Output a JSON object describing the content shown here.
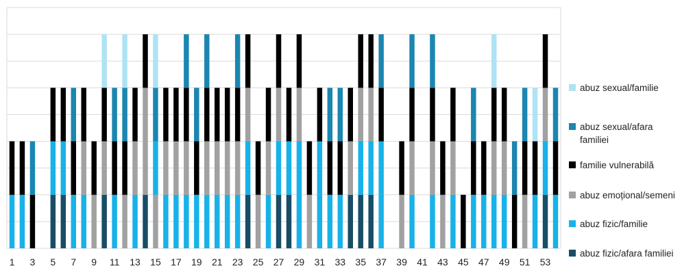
{
  "chart_data": {
    "type": "bar",
    "stacked": true,
    "title": "",
    "xlabel": "",
    "ylabel": "",
    "ylim": [
      0,
      4.5
    ],
    "grid": true,
    "legend_position": "right",
    "colors": {
      "abuz_sexual_familie": "#aee3f5",
      "abuz_sexual_afara": "#1b86b0",
      "familie_vulnerabila": "#000000",
      "abuz_emotional": "#a1a1a1",
      "abuz_fizic_familie": "#18b2e8",
      "abuz_fizic_afara": "#184d66"
    },
    "legend": [
      {
        "key": "abuz_sexual_familie",
        "label": "abuz sexual/familie"
      },
      {
        "key": "abuz_sexual_afara",
        "label": "abuz sexual/afara familiei"
      },
      {
        "key": "familie_vulnerabila",
        "label": "familie vulnerabilă"
      },
      {
        "key": "abuz_emotional",
        "label": "abuz emoțional/semeni"
      },
      {
        "key": "abuz_fizic_familie",
        "label": "abuz fizic/familie"
      },
      {
        "key": "abuz_fizic_afara",
        "label": "abuz fizic/afara familiei"
      }
    ],
    "x_tick_labels": [
      "1",
      "3",
      "5",
      "7",
      "9",
      "11",
      "13",
      "15",
      "17",
      "19",
      "21",
      "23",
      "25",
      "27",
      "29",
      "31",
      "33",
      "35",
      "37",
      "39",
      "41",
      "43",
      "45",
      "47",
      "49",
      "51",
      "53"
    ],
    "cases": [
      {
        "case": 1,
        "stack": [
          "abuz_fizic_familie",
          "familie_vulnerabila"
        ]
      },
      {
        "case": 2,
        "stack": [
          "abuz_fizic_familie",
          "familie_vulnerabila"
        ]
      },
      {
        "case": 3,
        "stack": [
          "familie_vulnerabila",
          "abuz_sexual_afara"
        ]
      },
      {
        "case": 4,
        "stack": []
      },
      {
        "case": 5,
        "stack": [
          "abuz_fizic_afara",
          "abuz_fizic_familie",
          "familie_vulnerabila"
        ]
      },
      {
        "case": 6,
        "stack": [
          "abuz_fizic_afara",
          "abuz_fizic_familie",
          "familie_vulnerabila"
        ]
      },
      {
        "case": 7,
        "stack": [
          "abuz_fizic_familie",
          "familie_vulnerabila",
          "abuz_sexual_afara"
        ]
      },
      {
        "case": 8,
        "stack": [
          "abuz_fizic_familie",
          "abuz_emotional",
          "familie_vulnerabila"
        ]
      },
      {
        "case": 9,
        "stack": [
          "abuz_emotional",
          "familie_vulnerabila"
        ]
      },
      {
        "case": 10,
        "stack": [
          "abuz_fizic_afara",
          "abuz_emotional",
          "familie_vulnerabila",
          "abuz_sexual_familie"
        ]
      },
      {
        "case": 11,
        "stack": [
          "abuz_fizic_familie",
          "familie_vulnerabila",
          "abuz_sexual_afara"
        ]
      },
      {
        "case": 12,
        "stack": [
          "abuz_emotional",
          "familie_vulnerabila",
          "abuz_sexual_afara",
          "abuz_sexual_familie"
        ]
      },
      {
        "case": 13,
        "stack": [
          "abuz_fizic_familie",
          "abuz_emotional",
          "familie_vulnerabila"
        ]
      },
      {
        "case": 14,
        "stack": [
          "abuz_fizic_afara",
          "abuz_emotional",
          "abuz_emotional",
          "familie_vulnerabila"
        ]
      },
      {
        "case": 15,
        "stack": [
          "abuz_emotional",
          "abuz_fizic_familie",
          "abuz_sexual_afara",
          "abuz_sexual_familie"
        ]
      },
      {
        "case": 16,
        "stack": [
          "abuz_fizic_familie",
          "abuz_emotional",
          "familie_vulnerabila"
        ]
      },
      {
        "case": 17,
        "stack": [
          "abuz_fizic_familie",
          "abuz_emotional",
          "familie_vulnerabila"
        ]
      },
      {
        "case": 18,
        "stack": [
          "abuz_fizic_familie",
          "abuz_emotional",
          "familie_vulnerabila",
          "abuz_sexual_afara"
        ]
      },
      {
        "case": 19,
        "stack": [
          "abuz_fizic_familie",
          "familie_vulnerabila",
          "abuz_sexual_afara"
        ]
      },
      {
        "case": 20,
        "stack": [
          "abuz_fizic_familie",
          "abuz_emotional",
          "familie_vulnerabila",
          "abuz_sexual_afara"
        ]
      },
      {
        "case": 21,
        "stack": [
          "abuz_fizic_familie",
          "abuz_emotional",
          "familie_vulnerabila"
        ]
      },
      {
        "case": 22,
        "stack": [
          "abuz_fizic_familie",
          "abuz_emotional",
          "familie_vulnerabila"
        ]
      },
      {
        "case": 23,
        "stack": [
          "abuz_fizic_familie",
          "abuz_emotional",
          "familie_vulnerabila",
          "abuz_sexual_afara"
        ]
      },
      {
        "case": 24,
        "stack": [
          "abuz_fizic_afara",
          "abuz_fizic_familie",
          "abuz_emotional",
          "familie_vulnerabila"
        ]
      },
      {
        "case": 25,
        "stack": [
          "abuz_emotional",
          "familie_vulnerabila"
        ]
      },
      {
        "case": 26,
        "stack": [
          "abuz_fizic_familie",
          "abuz_emotional",
          "familie_vulnerabila"
        ]
      },
      {
        "case": 27,
        "stack": [
          "abuz_fizic_afara",
          "abuz_fizic_familie",
          "abuz_emotional",
          "familie_vulnerabila"
        ]
      },
      {
        "case": 28,
        "stack": [
          "abuz_fizic_afara",
          "abuz_fizic_familie",
          "familie_vulnerabila"
        ]
      },
      {
        "case": 29,
        "stack": [
          "abuz_fizic_familie",
          "abuz_fizic_familie",
          "abuz_emotional",
          "familie_vulnerabila"
        ]
      },
      {
        "case": 30,
        "stack": [
          "abuz_emotional",
          "familie_vulnerabila"
        ]
      },
      {
        "case": 31,
        "stack": [
          "abuz_fizic_familie",
          "abuz_fizic_familie",
          "familie_vulnerabila"
        ]
      },
      {
        "case": 32,
        "stack": [
          "abuz_fizic_familie",
          "familie_vulnerabila",
          "abuz_sexual_afara"
        ]
      },
      {
        "case": 33,
        "stack": [
          "abuz_fizic_familie",
          "familie_vulnerabila",
          "abuz_sexual_afara"
        ]
      },
      {
        "case": 34,
        "stack": [
          "abuz_fizic_afara",
          "abuz_emotional",
          "familie_vulnerabila"
        ]
      },
      {
        "case": 35,
        "stack": [
          "abuz_fizic_afara",
          "abuz_fizic_familie",
          "abuz_emotional",
          "familie_vulnerabila"
        ]
      },
      {
        "case": 36,
        "stack": [
          "abuz_fizic_afara",
          "abuz_fizic_familie",
          "abuz_emotional",
          "familie_vulnerabila"
        ]
      },
      {
        "case": 37,
        "stack": [
          "abuz_fizic_familie",
          "abuz_fizic_familie",
          "familie_vulnerabila",
          "abuz_sexual_afara"
        ]
      },
      {
        "case": 38,
        "stack": []
      },
      {
        "case": 39,
        "stack": [
          "abuz_emotional",
          "familie_vulnerabila"
        ]
      },
      {
        "case": 40,
        "stack": [
          "abuz_fizic_familie",
          "abuz_emotional",
          "familie_vulnerabila",
          "abuz_sexual_afara"
        ]
      },
      {
        "case": 41,
        "stack": []
      },
      {
        "case": 42,
        "stack": [
          "abuz_fizic_familie",
          "abuz_emotional",
          "familie_vulnerabila",
          "abuz_sexual_afara"
        ]
      },
      {
        "case": 43,
        "stack": [
          "abuz_emotional",
          "familie_vulnerabila"
        ]
      },
      {
        "case": 44,
        "stack": [
          "abuz_fizic_familie",
          "abuz_emotional",
          "familie_vulnerabila"
        ]
      },
      {
        "case": 45,
        "stack": [
          "familie_vulnerabila"
        ]
      },
      {
        "case": 46,
        "stack": [
          "abuz_fizic_familie",
          "familie_vulnerabila",
          "abuz_sexual_afara"
        ]
      },
      {
        "case": 47,
        "stack": [
          "abuz_fizic_familie",
          "familie_vulnerabila"
        ]
      },
      {
        "case": 48,
        "stack": [
          "abuz_fizic_familie",
          "abuz_emotional",
          "familie_vulnerabila",
          "abuz_sexual_familie"
        ]
      },
      {
        "case": 49,
        "stack": [
          "abuz_fizic_familie",
          "abuz_emotional",
          "familie_vulnerabila"
        ]
      },
      {
        "case": 50,
        "stack": [
          "familie_vulnerabila",
          "abuz_sexual_afara"
        ]
      },
      {
        "case": 51,
        "stack": [
          "abuz_emotional",
          "familie_vulnerabila",
          "abuz_sexual_afara"
        ]
      },
      {
        "case": 52,
        "stack": [
          "abuz_fizic_familie",
          "familie_vulnerabila",
          "abuz_sexual_familie"
        ]
      },
      {
        "case": 53,
        "stack": [
          "abuz_fizic_afara",
          "abuz_fizic_familie",
          "abuz_emotional",
          "familie_vulnerabila"
        ]
      },
      {
        "case": 54,
        "stack": [
          "abuz_fizic_familie",
          "familie_vulnerabila",
          "abuz_sexual_afara"
        ]
      }
    ]
  }
}
